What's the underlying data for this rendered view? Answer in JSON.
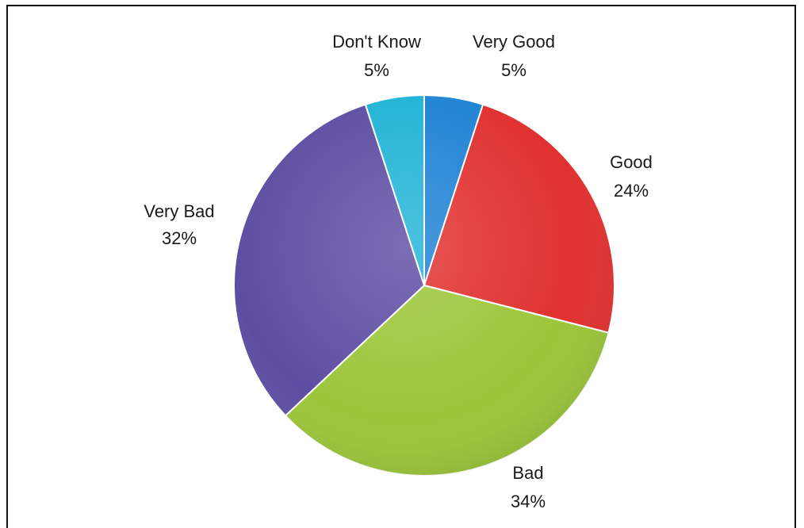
{
  "chart_data": {
    "type": "pie",
    "title": "",
    "slices": [
      {
        "label": "Very Good",
        "value": 5,
        "value_label": "5%",
        "color": "#1f83d4"
      },
      {
        "label": "Good",
        "value": 24,
        "value_label": "24%",
        "color": "#e0312f"
      },
      {
        "label": "Bad",
        "value": 34,
        "value_label": "34%",
        "color": "#9cc63a"
      },
      {
        "label": "Very Bad",
        "value": 32,
        "value_label": "32%",
        "color": "#5e4ea3"
      },
      {
        "label": "Don't Know",
        "value": 5,
        "value_label": "5%",
        "color": "#22b4d6"
      }
    ],
    "legend": "none",
    "start_angle": "12 o'clock",
    "direction": "clockwise"
  }
}
